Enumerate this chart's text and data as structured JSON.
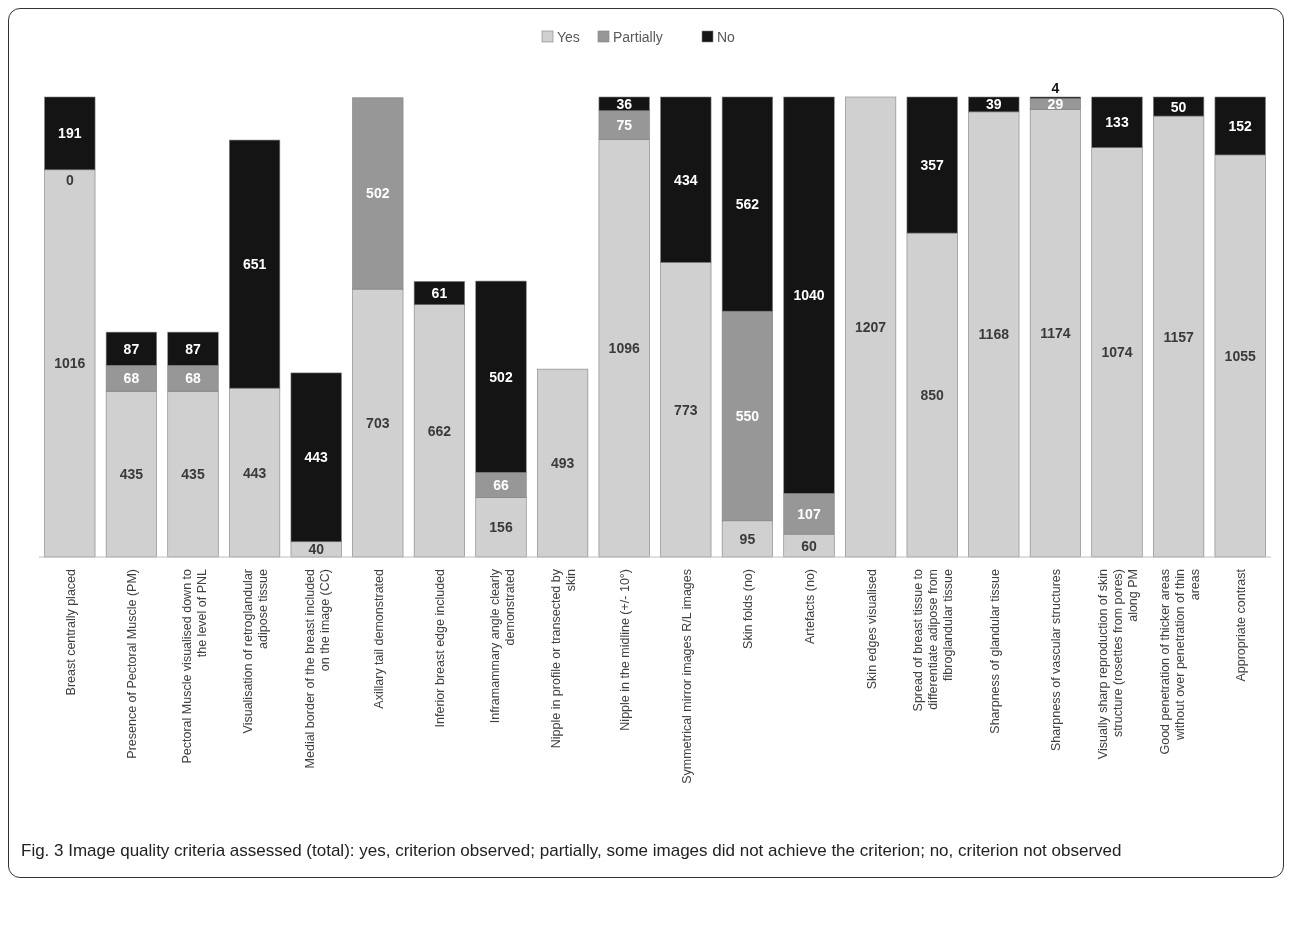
{
  "chart_data": {
    "type": "bar",
    "stacked": true,
    "data_labels": true,
    "legend": "top",
    "categories": [
      "Breast centrally placed",
      "Presence of Pectoral Muscle (PM)",
      "Pectoral Muscle visualised down to the level of PNL",
      "Visualisation of retroglandular adipose tissue",
      "Medial border of the breast included on the image (CC)",
      "Axillary tail demonstrated",
      "Inferior breast edge included",
      "Inframammary angle clearly demonstrated",
      "Nipple in profile or transected by skin",
      "Nipple in the midline (+/- 10°)",
      "Symmetrical mirror images R/L images",
      "Skin folds (no)",
      "Artefacts (no)",
      "Skin edges visualised",
      "Spread of breast tissue to differentiate adipose from fibroglandular tissue",
      "Sharpness of glandular tissue",
      "Sharpness of vascular structures",
      "Visually sharp reproduction of skin structure (rosettes from pores) along PM",
      "Good penetration of thicker areas without over penetration of thin areas",
      "Appropriate contrast"
    ],
    "series": [
      {
        "name": "Yes",
        "color": "#cfd0cf",
        "values": [
          1016,
          435,
          435,
          443,
          40,
          703,
          662,
          156,
          493,
          1096,
          773,
          95,
          60,
          1207,
          850,
          1168,
          1174,
          1074,
          1157,
          1055
        ]
      },
      {
        "name": "Partially",
        "color": "#979797",
        "values": [
          null,
          68,
          68,
          null,
          null,
          502,
          null,
          66,
          null,
          75,
          null,
          550,
          107,
          null,
          null,
          null,
          29,
          null,
          null,
          null
        ]
      },
      {
        "name": "No",
        "color": "#141414",
        "values": [
          191,
          87,
          87,
          651,
          443,
          null,
          61,
          502,
          null,
          36,
          434,
          562,
          1040,
          null,
          357,
          39,
          4,
          133,
          50,
          152
        ]
      }
    ],
    "annotations": [
      {
        "text": "0",
        "x": "Breast centrally placed",
        "y": 1016
      },
      "Fig. 3 Image quality criteria assessed (total): yes, criterion observed; partially, some images did not achieve the criterion; no, criterion not observed"
    ]
  }
}
